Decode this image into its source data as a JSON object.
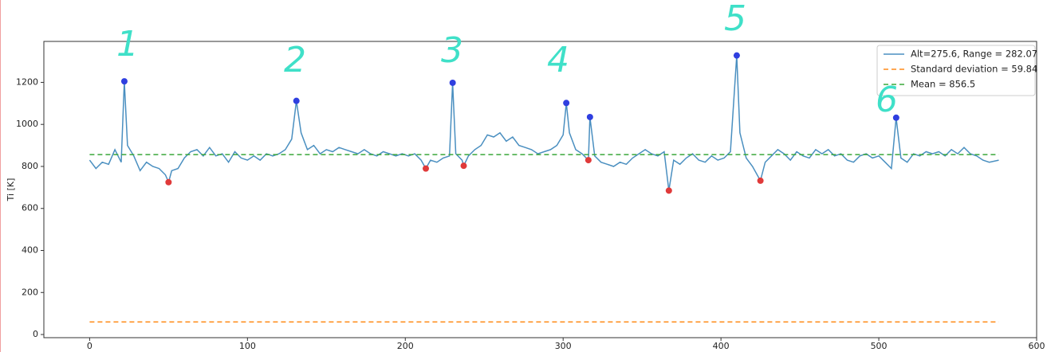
{
  "chart_data": {
    "type": "line",
    "ylabel": "Ti [K]",
    "xlim": [
      -29,
      600
    ],
    "ylim": [
      -15,
      1395
    ],
    "xticks": [
      0,
      100,
      200,
      300,
      400,
      500,
      600
    ],
    "yticks": [
      0,
      200,
      400,
      600,
      800,
      1000,
      1200
    ],
    "grid": false,
    "legend": "upper right",
    "annotations": [
      "1",
      "2",
      "3",
      "4",
      "5",
      "6"
    ],
    "annotation_color": "#3fe0c8",
    "series": [
      {
        "name": "Alt=275.6, Range = 282.07",
        "color": "#4a8fc0",
        "style": "solid",
        "x": [
          0,
          4,
          8,
          12,
          16,
          20,
          22,
          24,
          28,
          32,
          36,
          40,
          44,
          48,
          50,
          52,
          56,
          60,
          64,
          68,
          72,
          76,
          80,
          84,
          88,
          92,
          96,
          100,
          104,
          108,
          112,
          116,
          120,
          124,
          128,
          131,
          134,
          138,
          142,
          146,
          150,
          154,
          158,
          162,
          166,
          170,
          174,
          178,
          182,
          186,
          190,
          194,
          198,
          202,
          206,
          210,
          213,
          216,
          220,
          224,
          228,
          230,
          232,
          236,
          237,
          240,
          244,
          248,
          252,
          256,
          260,
          264,
          268,
          272,
          276,
          280,
          284,
          288,
          292,
          296,
          300,
          302,
          304,
          308,
          312,
          316,
          317,
          320,
          324,
          328,
          332,
          336,
          340,
          344,
          348,
          352,
          356,
          360,
          364,
          367,
          370,
          374,
          378,
          382,
          386,
          390,
          394,
          398,
          402,
          406,
          410,
          412,
          416,
          420,
          425,
          428,
          432,
          436,
          440,
          444,
          448,
          452,
          456,
          460,
          464,
          468,
          472,
          476,
          480,
          484,
          488,
          492,
          496,
          500,
          504,
          508,
          511,
          514,
          518,
          522,
          526,
          530,
          534,
          538,
          542,
          546,
          550,
          554,
          558,
          562,
          566,
          570,
          576
        ],
        "values": [
          830,
          790,
          820,
          810,
          880,
          820,
          1205,
          900,
          850,
          780,
          820,
          800,
          790,
          760,
          725,
          780,
          790,
          840,
          870,
          880,
          850,
          890,
          850,
          860,
          820,
          870,
          840,
          830,
          850,
          830,
          860,
          850,
          860,
          880,
          930,
          1112,
          960,
          880,
          900,
          860,
          880,
          870,
          890,
          880,
          870,
          860,
          880,
          860,
          850,
          870,
          860,
          850,
          860,
          850,
          860,
          830,
          790,
          830,
          820,
          840,
          850,
          1198,
          860,
          830,
          803,
          850,
          880,
          900,
          950,
          940,
          960,
          920,
          940,
          900,
          890,
          880,
          860,
          870,
          880,
          900,
          950,
          1102,
          960,
          880,
          860,
          830,
          1035,
          850,
          820,
          810,
          800,
          820,
          810,
          840,
          860,
          880,
          860,
          850,
          870,
          685,
          830,
          810,
          840,
          860,
          830,
          820,
          850,
          830,
          840,
          870,
          1328,
          960,
          840,
          800,
          732,
          820,
          850,
          880,
          860,
          830,
          870,
          850,
          840,
          880,
          860,
          880,
          850,
          860,
          830,
          820,
          850,
          860,
          840,
          850,
          820,
          790,
          1032,
          840,
          820,
          860,
          850,
          870,
          860,
          870,
          850,
          880,
          860,
          890,
          860,
          850,
          830,
          820,
          830
        ]
      },
      {
        "name": "Standard deviation = 59.84",
        "color": "#ff8c1a",
        "style": "dashed",
        "x": [
          0,
          576
        ],
        "values": [
          59.84,
          59.84
        ]
      },
      {
        "name": "Mean = 856.5",
        "color": "#3aa83a",
        "style": "dashed",
        "x": [
          0,
          576
        ],
        "values": [
          856.5,
          856.5
        ]
      }
    ],
    "markers": [
      {
        "color": "#2f3fe0",
        "x": [
          22,
          131,
          230,
          302,
          317,
          410,
          511
        ],
        "values": [
          1205,
          1112,
          1198,
          1102,
          1035,
          1328,
          1032
        ]
      },
      {
        "color": "#e03a3a",
        "x": [
          50,
          213,
          237,
          316,
          367,
          425
        ],
        "values": [
          725,
          790,
          803,
          830,
          685,
          732
        ]
      }
    ]
  }
}
